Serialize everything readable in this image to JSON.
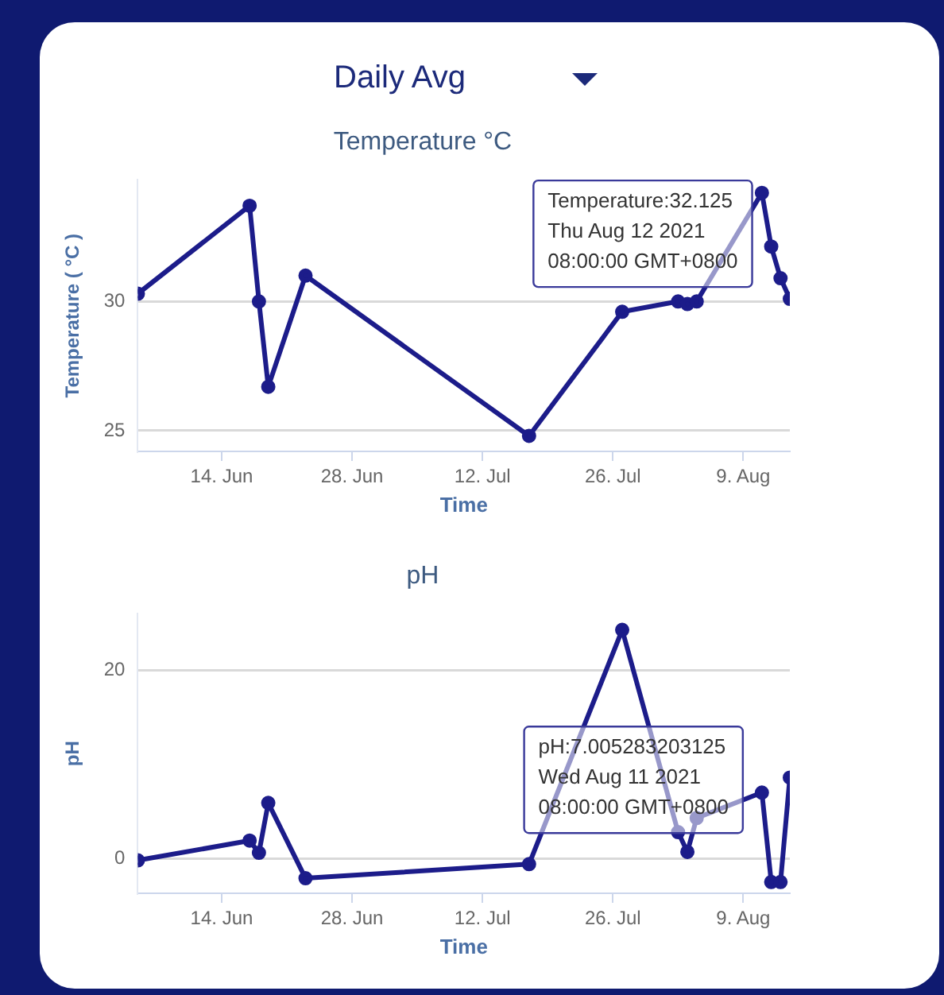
{
  "chart_data": [
    {
      "type": "line",
      "title": "Temperature °C",
      "xlabel": "Time",
      "ylabel": "Temperature ( °C )",
      "annotations": [
        "Daily Avg",
        {
          "text": "Temperature:32.125\nThu Aug 12 2021\n08:00:00 GMT+0800",
          "x": "2021-08-12",
          "y": 32.125
        }
      ],
      "x": [
        "2021-06-05",
        "2021-06-17",
        "2021-06-18",
        "2021-06-19",
        "2021-06-23",
        "2021-07-17",
        "2021-07-27",
        "2021-08-02",
        "2021-08-03",
        "2021-08-04",
        "2021-08-11",
        "2021-08-12",
        "2021-08-13",
        "2021-08-14"
      ],
      "series": [
        {
          "color": "#1c1c8a",
          "values": [
            30.3,
            33.7,
            30.0,
            26.7,
            31.0,
            24.8,
            29.6,
            30.0,
            29.9,
            30.0,
            34.2,
            32.125,
            30.9,
            30.1
          ]
        }
      ],
      "xlim": [
        "2021-06-05",
        "2021-08-14"
      ],
      "xticks": [
        {
          "value": "2021-06-14",
          "label": "14. Jun"
        },
        {
          "value": "2021-06-28",
          "label": "28. Jun"
        },
        {
          "value": "2021-07-12",
          "label": "12. Jul"
        },
        {
          "value": "2021-07-26",
          "label": "26. Jul"
        },
        {
          "value": "2021-08-09",
          "label": "9. Aug"
        }
      ],
      "ylim": [
        24.2,
        34.7
      ],
      "yticks": [
        25,
        30
      ],
      "grid": "y",
      "legend": false,
      "marker": "circle",
      "line_style": "solid"
    },
    {
      "type": "line",
      "title": "pH",
      "xlabel": "Time",
      "ylabel": "pH",
      "annotations": [
        {
          "text": "pH:7.005283203125\nWed Aug 11 2021\n08:00:00 GMT+0800",
          "x": "2021-08-11",
          "y": 7.005283203125
        }
      ],
      "x": [
        "2021-06-05",
        "2021-06-17",
        "2021-06-18",
        "2021-06-19",
        "2021-06-23",
        "2021-07-17",
        "2021-07-27",
        "2021-08-02",
        "2021-08-03",
        "2021-08-04",
        "2021-08-11",
        "2021-08-12",
        "2021-08-13",
        "2021-08-14"
      ],
      "series": [
        {
          "color": "#1c1c8a",
          "values": [
            -0.2,
            1.9,
            0.6,
            5.9,
            -2.1,
            -0.6,
            24.3,
            2.8,
            0.7,
            4.3,
            7.005283203125,
            -2.5,
            -2.5,
            8.6
          ]
        }
      ],
      "xlim": [
        "2021-06-05",
        "2021-08-14"
      ],
      "xticks": [
        {
          "value": "2021-06-14",
          "label": "14. Jun"
        },
        {
          "value": "2021-06-28",
          "label": "28. Jun"
        },
        {
          "value": "2021-07-12",
          "label": "12. Jul"
        },
        {
          "value": "2021-07-26",
          "label": "26. Jul"
        },
        {
          "value": "2021-08-09",
          "label": "9. Aug"
        }
      ],
      "ylim": [
        -3.7,
        26
      ],
      "yticks": [
        0,
        20
      ],
      "grid": "y",
      "legend": false,
      "marker": "circle",
      "line_style": "solid"
    }
  ]
}
